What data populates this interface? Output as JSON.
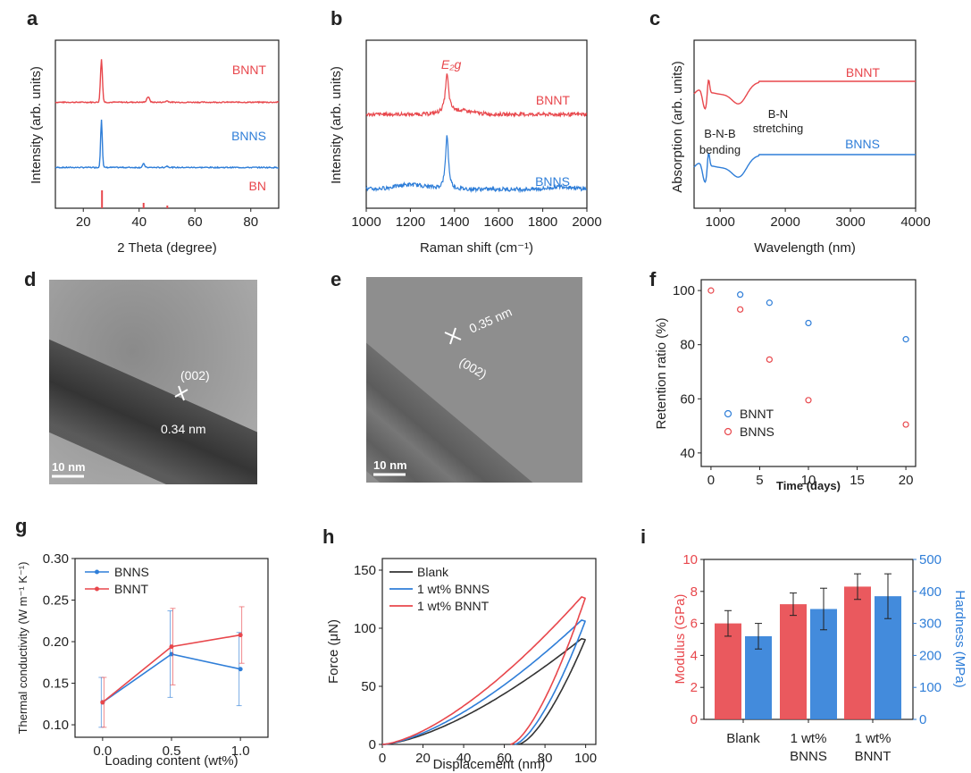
{
  "colors": {
    "bnnt": "#e8474c",
    "bnns": "#2f7ed8",
    "blank": "#333333",
    "axis": "#222222"
  },
  "panel_letters": [
    "a",
    "b",
    "c",
    "d",
    "e",
    "f",
    "g",
    "h",
    "i"
  ],
  "tem_d": {
    "plane": "(002)",
    "spacing": "0.34 nm",
    "scalebar": "10 nm"
  },
  "tem_e": {
    "plane": "(002)",
    "spacing": "0.35 nm",
    "scalebar": "10 nm"
  },
  "chart_data": [
    {
      "id": "a",
      "type": "line",
      "title": "",
      "xlabel": "2 Theta (degree)",
      "ylabel": "Intensity (arb. units)",
      "xlim": [
        10,
        90
      ],
      "xticks": [
        20,
        40,
        60,
        80
      ],
      "series": [
        {
          "name": "BNNT",
          "color": "#e8474c",
          "note": "peaks near 26.5, 43"
        },
        {
          "name": "BNNS",
          "color": "#2f7ed8",
          "note": "peaks near 26.5, 41.5"
        },
        {
          "name": "BN",
          "color": "#e8474c",
          "note": "reference lines at 26.7, 41.6, 50.1"
        }
      ]
    },
    {
      "id": "b",
      "type": "line",
      "title": "",
      "xlabel": "Raman shift (cm⁻¹)",
      "ylabel": "Intensity (arb. units)",
      "xlim": [
        1000,
        2000
      ],
      "xticks": [
        1000,
        1200,
        1400,
        1600,
        1800,
        2000
      ],
      "annotation": "E₂g",
      "series": [
        {
          "name": "BNNT",
          "peak": 1366
        },
        {
          "name": "BNNS",
          "peak": 1366
        }
      ]
    },
    {
      "id": "c",
      "type": "line",
      "title": "",
      "xlabel": "Wavelength (nm)",
      "ylabel": "Absorption (arb. units)",
      "xlim": [
        600,
        4000
      ],
      "xticks": [
        1000,
        2000,
        3000,
        4000
      ],
      "annotations": [
        "B-N-B\nbending",
        "B-N\nstretching"
      ],
      "series": [
        {
          "name": "BNNT"
        },
        {
          "name": "BNNS"
        }
      ]
    },
    {
      "id": "f",
      "type": "scatter",
      "title": "",
      "xlabel": "Time (days)",
      "ylabel": "Retention ratio (%)",
      "xlim": [
        -1,
        21
      ],
      "ylim": [
        35,
        104
      ],
      "xticks": [
        0,
        5,
        10,
        15,
        20
      ],
      "yticks": [
        40,
        60,
        80,
        100
      ],
      "legend": "bottom-left",
      "series": [
        {
          "name": "BNNT",
          "x": [
            3,
            6,
            10,
            20
          ],
          "y": [
            98.5,
            95.5,
            88,
            82
          ]
        },
        {
          "name": "BNNS",
          "x": [
            0,
            3,
            6,
            10,
            20
          ],
          "y": [
            100,
            93,
            74.5,
            59.5,
            50.5
          ]
        }
      ]
    },
    {
      "id": "g",
      "type": "line",
      "title": "",
      "xlabel": "Loading content (wt%)",
      "ylabel": "Thermal conductivity (W m⁻¹ K⁻¹)",
      "xlim": [
        -0.2,
        1.2
      ],
      "ylim": [
        0.085,
        0.3
      ],
      "xticks": [
        0.0,
        0.5,
        1.0
      ],
      "yticks": [
        0.1,
        0.15,
        0.2,
        0.25,
        0.3
      ],
      "legend": "top-left",
      "series": [
        {
          "name": "BNNS",
          "x": [
            0,
            0.5,
            1.0
          ],
          "y": [
            0.127,
            0.185,
            0.167
          ],
          "err": [
            0.03,
            0.052,
            0.044
          ]
        },
        {
          "name": "BNNT",
          "x": [
            0,
            0.5,
            1.0
          ],
          "y": [
            0.127,
            0.194,
            0.208
          ],
          "err": [
            0.03,
            0.046,
            0.034
          ]
        }
      ]
    },
    {
      "id": "h",
      "type": "line",
      "title": "",
      "xlabel": "Displacement (nm)",
      "ylabel": "Force (μN)",
      "xlim": [
        0,
        105
      ],
      "ylim": [
        0,
        160
      ],
      "xticks": [
        0,
        20,
        40,
        60,
        80,
        100
      ],
      "yticks": [
        0,
        50,
        100,
        150
      ],
      "legend": "top-left",
      "series": [
        {
          "name": "Blank",
          "max_force": 91,
          "unload_end": 67
        },
        {
          "name": "1 wt% BNNS",
          "max_force": 107,
          "unload_end": 65
        },
        {
          "name": "1 wt% BNNT",
          "max_force": 127,
          "unload_end": 63
        }
      ]
    },
    {
      "id": "i",
      "type": "bar",
      "title": "",
      "categories": [
        "Blank",
        "1 wt%\nBNNS",
        "1 wt%\nBNNT"
      ],
      "ylabel": "Modulus (GPa)",
      "y2label": "Hardness (MPa)",
      "ylim": [
        0,
        10
      ],
      "y2lim": [
        0,
        500
      ],
      "yticks": [
        0,
        2,
        4,
        6,
        8,
        10
      ],
      "y2ticks": [
        0,
        100,
        200,
        300,
        400,
        500
      ],
      "series": [
        {
          "name": "Modulus",
          "axis": "left",
          "values": [
            6.0,
            7.2,
            8.3
          ],
          "err": [
            0.8,
            0.7,
            0.8
          ]
        },
        {
          "name": "Hardness",
          "axis": "right",
          "values": [
            260,
            345,
            385
          ],
          "err": [
            40,
            65,
            70
          ]
        }
      ]
    }
  ]
}
